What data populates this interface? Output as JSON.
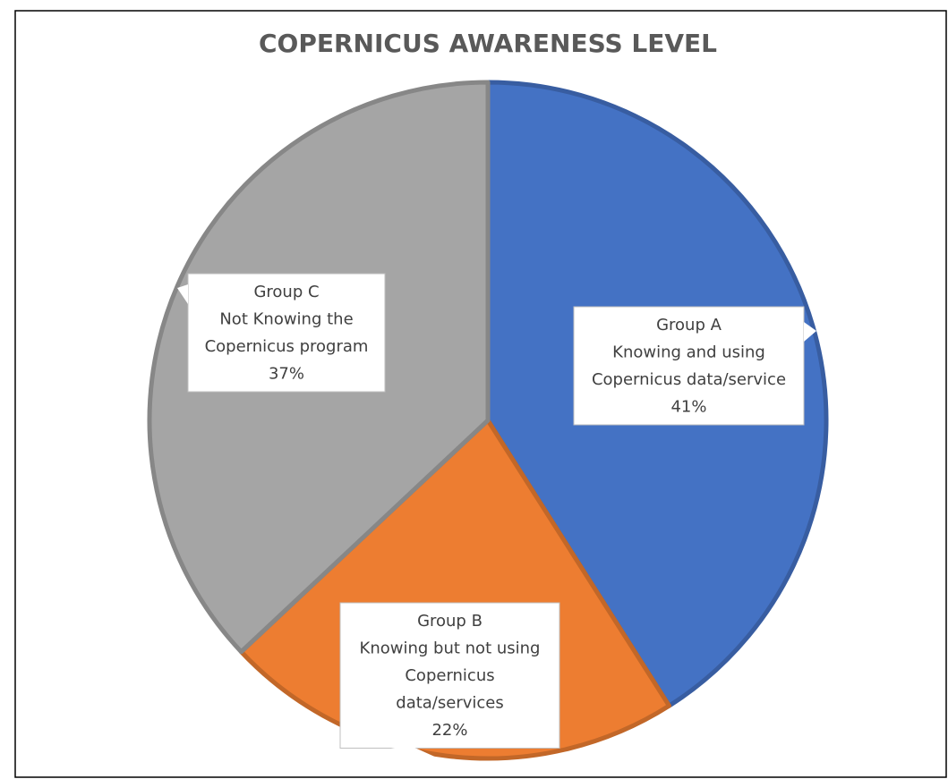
{
  "chart_data": {
    "type": "pie",
    "title": "COPERNICUS AWARENESS LEVEL",
    "categories": [
      "Group A",
      "Group B",
      "Group C"
    ],
    "descriptions": [
      [
        "Knowing and using",
        "Copernicus data/service"
      ],
      [
        "Knowing but not using",
        "Copernicus",
        "data/services"
      ],
      [
        "Not Knowing the",
        "Copernicus program"
      ]
    ],
    "values": [
      41,
      22,
      37
    ],
    "value_labels": [
      "41%",
      "22%",
      "37%"
    ],
    "colors": [
      "#4472c4",
      "#ed7d31",
      "#a5a5a5"
    ]
  }
}
